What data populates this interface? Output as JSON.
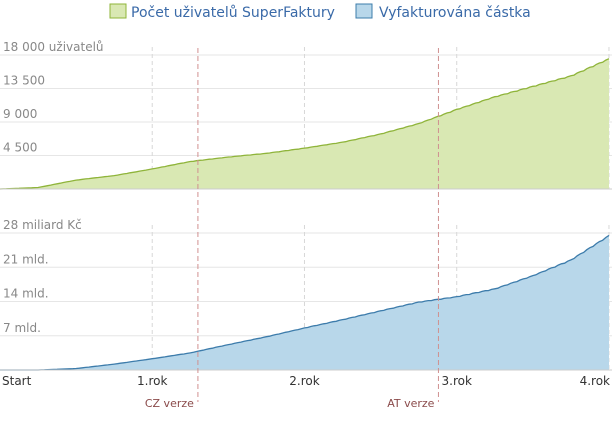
{
  "chart_data": [
    {
      "type": "area",
      "legend": "Počet uživatelů SuperFaktury",
      "color_fill": "#d9e8b3",
      "color_line": "#8fb43a",
      "ylim": [
        0,
        18000
      ],
      "yticks": [
        {
          "value": 18000,
          "label": "18 000 uživatelů"
        },
        {
          "value": 13500,
          "label": "13 500"
        },
        {
          "value": 9000,
          "label": "9 000"
        },
        {
          "value": 4500,
          "label": "4 500"
        }
      ],
      "x": [
        0,
        0.25,
        0.5,
        0.75,
        1.0,
        1.25,
        1.5,
        1.75,
        2.0,
        2.25,
        2.5,
        2.75,
        3.0,
        3.25,
        3.5,
        3.75,
        4.0
      ],
      "values": [
        0,
        200,
        1200,
        1800,
        2700,
        3700,
        4300,
        4800,
        5500,
        6300,
        7400,
        8800,
        10700,
        12400,
        13800,
        15200,
        17500
      ]
    },
    {
      "type": "area",
      "legend": "Vyfakturována částka",
      "color_fill": "#b8d7ea",
      "color_line": "#3d7cab",
      "ylim": [
        0,
        28
      ],
      "yticks": [
        {
          "value": 28,
          "label": "28 miliard Kč"
        },
        {
          "value": 21,
          "label": "21 mld."
        },
        {
          "value": 14,
          "label": "14 mld."
        },
        {
          "value": 7,
          "label": "7 mld."
        }
      ],
      "x": [
        0,
        0.25,
        0.5,
        0.75,
        1.0,
        1.25,
        1.5,
        1.75,
        2.0,
        2.25,
        2.5,
        2.75,
        3.0,
        3.25,
        3.5,
        3.75,
        4.0
      ],
      "values": [
        0,
        0,
        0.3,
        1.2,
        2.3,
        3.5,
        5.2,
        6.8,
        8.6,
        10.3,
        12.1,
        13.9,
        15.0,
        16.6,
        19.3,
        22.5,
        27.5
      ]
    }
  ],
  "x_axis": {
    "ticks": [
      {
        "value": 0,
        "label": "Start"
      },
      {
        "value": 1,
        "label": "1.rok"
      },
      {
        "value": 2,
        "label": "2.rok"
      },
      {
        "value": 3,
        "label": "3.rok"
      },
      {
        "value": 4,
        "label": "4.rok"
      }
    ],
    "range": [
      0,
      4.02
    ]
  },
  "events": [
    {
      "x": 1.3,
      "label": "CZ verze"
    },
    {
      "x": 2.88,
      "label": "AT verze"
    }
  ]
}
